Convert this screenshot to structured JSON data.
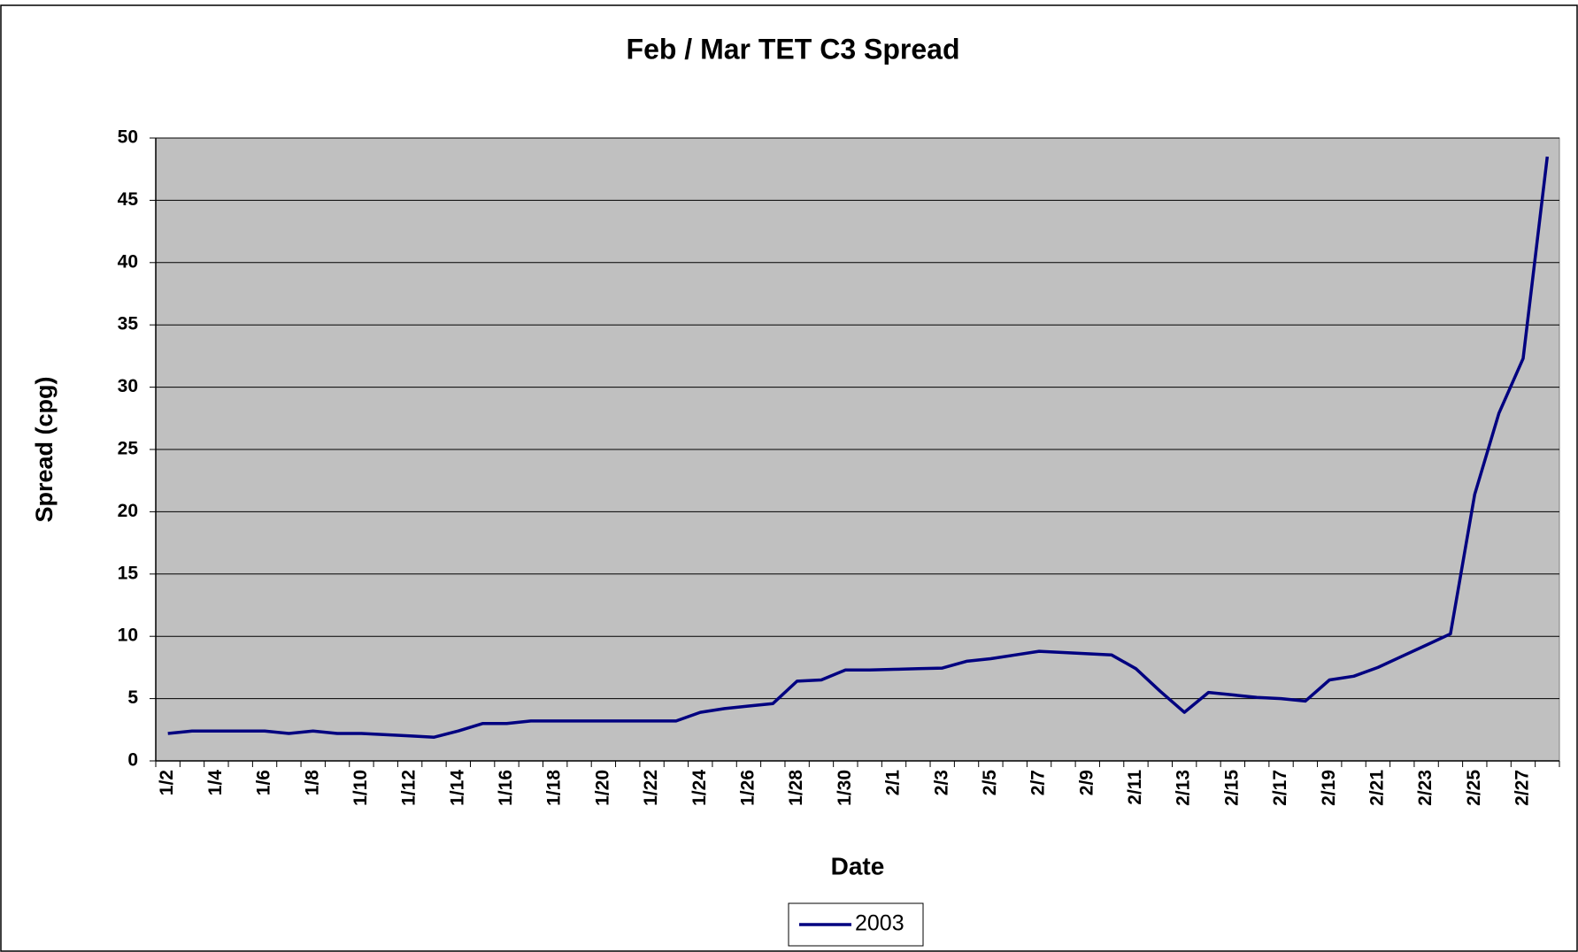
{
  "chart_data": {
    "type": "line",
    "title": "Feb / Mar TET C3 Spread",
    "x_label": "Date",
    "y_label": "Spread (cpg)",
    "categories": [
      "1/2",
      null,
      "1/4",
      null,
      "1/6",
      null,
      "1/8",
      null,
      "1/10",
      null,
      "1/12",
      null,
      "1/14",
      null,
      "1/16",
      null,
      "1/18",
      null,
      "1/20",
      null,
      "1/22",
      null,
      "1/24",
      null,
      "1/26",
      null,
      "1/28",
      null,
      "1/30",
      null,
      "2/1",
      null,
      "2/3",
      null,
      "2/5",
      null,
      "2/7",
      null,
      "2/9",
      null,
      "2/11",
      null,
      "2/13",
      null,
      "2/15",
      null,
      "2/17",
      null,
      "2/19",
      null,
      "2/21",
      null,
      "2/23",
      null,
      "2/25",
      null,
      "2/27",
      null
    ],
    "series": [
      {
        "name": "2003",
        "color": "#000080",
        "values": [
          2.2,
          2.4,
          2.4,
          2.4,
          2.4,
          2.2,
          2.4,
          2.2,
          2.2,
          2.1,
          2.0,
          1.9,
          2.4,
          3.0,
          3.0,
          3.2,
          3.2,
          3.2,
          3.2,
          3.2,
          3.2,
          3.2,
          3.9,
          4.2,
          4.4,
          4.6,
          6.4,
          6.5,
          7.3,
          7.3,
          7.35,
          7.4,
          7.45,
          8.0,
          8.2,
          8.5,
          8.8,
          8.7,
          8.6,
          8.5,
          7.4,
          5.6,
          3.9,
          5.5,
          5.3,
          5.1,
          5.0,
          4.8,
          6.5,
          6.8,
          7.5,
          8.4,
          9.3,
          10.2,
          21.4,
          27.9,
          32.3,
          48.5
        ]
      }
    ],
    "ylim": [
      0,
      50
    ],
    "yticks": [
      0,
      5,
      10,
      15,
      20,
      25,
      30,
      35,
      40,
      45,
      50
    ],
    "grid": true,
    "legend": "bottom"
  }
}
